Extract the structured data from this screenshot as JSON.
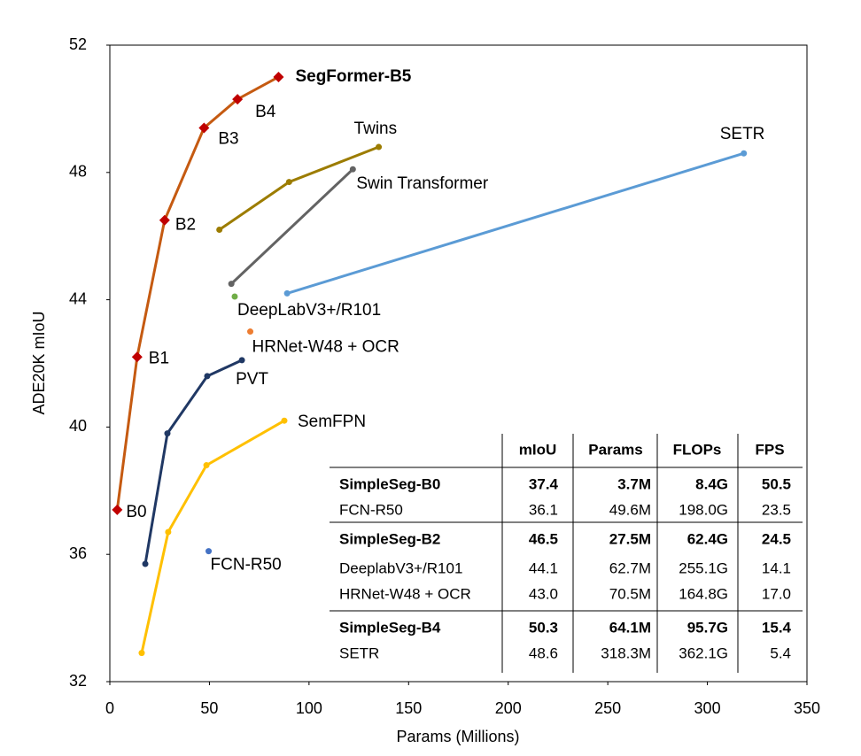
{
  "chart_data": {
    "type": "line",
    "xlabel": "Params (Millions)",
    "ylabel": "ADE20K mIoU",
    "xlim": [
      0,
      350
    ],
    "ylim": [
      32,
      52
    ],
    "xticks": [
      0,
      50,
      100,
      150,
      200,
      250,
      300,
      350
    ],
    "yticks": [
      32,
      36,
      40,
      44,
      48,
      52
    ],
    "grid": false,
    "series": [
      {
        "color": "#c55a11",
        "marker": "diamond",
        "marker_color": "#c00000",
        "x": [
          3.7,
          13.7,
          27.5,
          47.3,
          64.1,
          84.7
        ],
        "values": [
          37.4,
          42.2,
          46.5,
          49.4,
          50.3,
          51.0
        ],
        "point_labels": [
          "B0",
          "B1",
          "B2",
          "B3",
          "B4",
          "SegFormer-B5"
        ]
      },
      {
        "name": "Twins",
        "color": "#9c7c00",
        "marker": "circle",
        "x": [
          55,
          90,
          135
        ],
        "values": [
          46.2,
          47.7,
          48.8
        ]
      },
      {
        "name": "Swin Transformer",
        "color": "#636363",
        "marker": "circle",
        "x": [
          61,
          122
        ],
        "values": [
          44.5,
          48.1
        ]
      },
      {
        "name": "SETR",
        "color": "#5b9bd5",
        "marker": "circle",
        "x": [
          89,
          318.3
        ],
        "values": [
          44.2,
          48.6
        ]
      },
      {
        "name": "DeepLabV3+/R101",
        "color": "#70ad47",
        "marker": "circle",
        "x": [
          62.7
        ],
        "values": [
          44.1
        ]
      },
      {
        "name": "HRNet-W48 + OCR",
        "color": "#ed7d31",
        "marker": "circle",
        "x": [
          70.5
        ],
        "values": [
          43.0
        ]
      },
      {
        "name": "PVT",
        "color": "#203864",
        "marker": "circle",
        "x": [
          17.8,
          28.9,
          48.9,
          66.3
        ],
        "values": [
          35.7,
          39.8,
          41.6,
          42.1
        ]
      },
      {
        "name": "SemFPN",
        "color": "#ffc000",
        "marker": "circle",
        "x": [
          16,
          29.3,
          48.5,
          87.6
        ],
        "values": [
          32.9,
          36.7,
          38.8,
          40.2
        ]
      },
      {
        "name": "FCN-R50",
        "color": "#4472c4",
        "marker": "circle",
        "x": [
          49.6
        ],
        "values": [
          36.1
        ]
      }
    ],
    "table": {
      "columns": [
        "mIoU",
        "Params",
        "FLOPs",
        "FPS"
      ],
      "groups": [
        [
          [
            "SimpleSeg-B0",
            "37.4",
            "3.7M",
            "8.4G",
            "50.5"
          ],
          [
            "FCN-R50",
            "36.1",
            "49.6M",
            "198.0G",
            "23.5"
          ]
        ],
        [
          [
            "SimpleSeg-B2",
            "46.5",
            "27.5M",
            "62.4G",
            "24.5"
          ],
          [
            "DeeplabV3+/R101",
            "44.1",
            "62.7M",
            "255.1G",
            "14.1"
          ],
          [
            "HRNet-W48 + OCR",
            "43.0",
            "70.5M",
            "164.8G",
            "17.0"
          ]
        ],
        [
          [
            "SimpleSeg-B4",
            "50.3",
            "64.1M",
            "95.7G",
            "15.4"
          ],
          [
            "SETR",
            "48.6",
            "318.3M",
            "362.1G",
            "5.4"
          ]
        ]
      ]
    }
  }
}
